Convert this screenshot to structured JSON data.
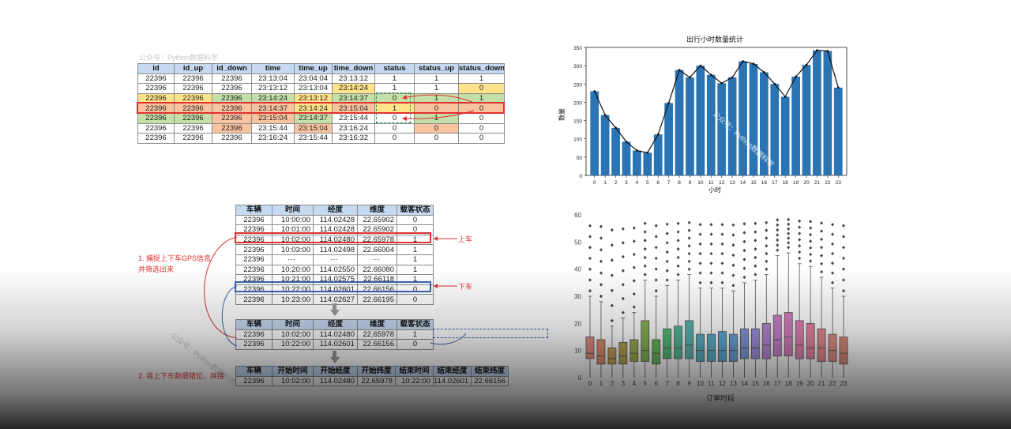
{
  "watermarks": {
    "w1": "公众号：Python数据科学",
    "w2": "公众号：Python数据科学",
    "w3": "公众号：Python数据科学"
  },
  "table1": {
    "headers": [
      "id",
      "id_up",
      "id_down",
      "time",
      "time_up",
      "time_down",
      "status",
      "status_up",
      "status_down"
    ],
    "rows": [
      [
        "22396",
        "22396",
        "22396",
        "23:13:04",
        "23:04:04",
        "23:13:12",
        "1",
        "1",
        "1"
      ],
      [
        "22396",
        "22396",
        "22396",
        "23:13:12",
        "23:13:04",
        "23:14:24",
        "1",
        "1",
        "0"
      ],
      [
        "22396",
        "22396",
        "22396",
        "23:14:24",
        "23:13:12",
        "23:14:37",
        "0",
        "1",
        "1"
      ],
      [
        "22396",
        "22396",
        "22396",
        "23:14:37",
        "23:14:24",
        "23:15:04",
        "1",
        "0",
        "0"
      ],
      [
        "22396",
        "22396",
        "22396",
        "23:15:04",
        "23:14:37",
        "23:15:44",
        "0",
        "1",
        "0"
      ],
      [
        "22396",
        "22396",
        "22396",
        "23:15:44",
        "23:15:04",
        "23:16:24",
        "0",
        "0",
        "0"
      ],
      [
        "22396",
        "22396",
        "22396",
        "23:16:24",
        "23:15:44",
        "23:16:32",
        "0",
        "0",
        "0"
      ]
    ]
  },
  "table2": {
    "headers": [
      "车辆",
      "时间",
      "经度",
      "维度",
      "载客状态"
    ],
    "rows": [
      [
        "22396",
        "10:00:00",
        "114.02428",
        "22.65902",
        "0"
      ],
      [
        "22396",
        "10:01:00",
        "114.02428",
        "22.65902",
        "0"
      ],
      [
        "22396",
        "10:02:00",
        "114.02480",
        "22.65978",
        "1"
      ],
      [
        "22396",
        "10:03:00",
        "114.02498",
        "22.66004",
        "1"
      ],
      [
        "22396",
        "···",
        "···",
        "···",
        "1"
      ],
      [
        "22396",
        "10:20:00",
        "114.02550",
        "22.66080",
        "1"
      ],
      [
        "22396",
        "10:21:00",
        "114.02575",
        "22.66118",
        "1"
      ],
      [
        "22396",
        "10:22:00",
        "114.02601",
        "22.66156",
        "0"
      ],
      [
        "22396",
        "10:23:00",
        "114.02627",
        "22.66195",
        "0"
      ]
    ]
  },
  "table3": {
    "headers": [
      "车辆",
      "时间",
      "经度",
      "维度",
      "载客状态"
    ],
    "rows": [
      [
        "22396",
        "10:02:00",
        "114.02480",
        "22.65978",
        "1"
      ],
      [
        "22396",
        "10:22:00",
        "114.02601",
        "22.66156",
        "0"
      ]
    ]
  },
  "table4": {
    "headers": [
      "车辆",
      "开始时间",
      "开始经度",
      "开始纬度",
      "结束时间",
      "结束经度",
      "结束纬度"
    ],
    "rows": [
      [
        "22396",
        "10:02:00",
        "114.02480",
        "22.65978",
        "10:22:00",
        "114.02601",
        "22.66156"
      ]
    ]
  },
  "labels": {
    "shangche": "上车",
    "xiache": "下车",
    "step1_line1": "1. 捕捉上下车GPS信息",
    "step1_line2": "并筛选出来",
    "step2": "2. 将上下车数据错位、拼接"
  },
  "chart_data": [
    {
      "type": "bar",
      "title": "出行小时数量统计",
      "xlabel": "小时",
      "ylabel": "数量",
      "categories": [
        "0",
        "1",
        "2",
        "3",
        "4",
        "5",
        "6",
        "7",
        "8",
        "9",
        "10",
        "11",
        "12",
        "13",
        "14",
        "15",
        "16",
        "17",
        "18",
        "19",
        "20",
        "21",
        "22",
        "23"
      ],
      "values": [
        230,
        165,
        130,
        92,
        68,
        62,
        112,
        198,
        288,
        268,
        300,
        275,
        252,
        268,
        312,
        305,
        282,
        250,
        215,
        270,
        302,
        342,
        340,
        240
      ],
      "line_overlay": true,
      "ylim": [
        0,
        350
      ],
      "yticks": [
        0,
        50,
        100,
        150,
        200,
        250,
        300,
        350
      ],
      "bar_color": "#2a74b4",
      "watermark": "公众号：Python数据科学"
    },
    {
      "type": "box",
      "xlabel": "订单时段",
      "ylabel": "",
      "categories": [
        "0",
        "1",
        "2",
        "3",
        "4",
        "5",
        "6",
        "7",
        "8",
        "9",
        "10",
        "11",
        "12",
        "13",
        "14",
        "15",
        "16",
        "17",
        "18",
        "19",
        "20",
        "21",
        "22",
        "23"
      ],
      "ylim": [
        0,
        60
      ],
      "yticks": [
        0,
        10,
        20,
        30,
        40,
        50,
        60
      ],
      "boxes": [
        {
          "q1": 7,
          "med": 9,
          "q3": 15,
          "lo": 0,
          "hi": 30
        },
        {
          "q1": 5,
          "med": 8,
          "q3": 14,
          "lo": 0,
          "hi": 28
        },
        {
          "q1": 5,
          "med": 7,
          "q3": 11,
          "lo": 0,
          "hi": 19
        },
        {
          "q1": 5,
          "med": 8,
          "q3": 13,
          "lo": 0,
          "hi": 22
        },
        {
          "q1": 6,
          "med": 9,
          "q3": 14,
          "lo": 0,
          "hi": 24
        },
        {
          "q1": 6,
          "med": 10,
          "q3": 21,
          "lo": 0,
          "hi": 36
        },
        {
          "q1": 5,
          "med": 9,
          "q3": 14,
          "lo": 0,
          "hi": 30
        },
        {
          "q1": 7,
          "med": 11,
          "q3": 18,
          "lo": 0,
          "hi": 34
        },
        {
          "q1": 7,
          "med": 11,
          "q3": 19,
          "lo": 0,
          "hi": 36
        },
        {
          "q1": 7,
          "med": 12,
          "q3": 21,
          "lo": 0,
          "hi": 38
        },
        {
          "q1": 6,
          "med": 10,
          "q3": 16,
          "lo": 0,
          "hi": 33
        },
        {
          "q1": 6,
          "med": 10,
          "q3": 16,
          "lo": 0,
          "hi": 33
        },
        {
          "q1": 6,
          "med": 10,
          "q3": 17,
          "lo": 0,
          "hi": 33
        },
        {
          "q1": 6,
          "med": 10,
          "q3": 16,
          "lo": 0,
          "hi": 32
        },
        {
          "q1": 7,
          "med": 11,
          "q3": 18,
          "lo": 0,
          "hi": 35
        },
        {
          "q1": 7,
          "med": 11,
          "q3": 18,
          "lo": 0,
          "hi": 36
        },
        {
          "q1": 7,
          "med": 12,
          "q3": 20,
          "lo": 0,
          "hi": 38
        },
        {
          "q1": 8,
          "med": 14,
          "q3": 23,
          "lo": 0,
          "hi": 45
        },
        {
          "q1": 8,
          "med": 15,
          "q3": 24,
          "lo": 0,
          "hi": 46
        },
        {
          "q1": 7,
          "med": 12,
          "q3": 21,
          "lo": 0,
          "hi": 42
        },
        {
          "q1": 7,
          "med": 11,
          "q3": 20,
          "lo": 0,
          "hi": 41
        },
        {
          "q1": 6,
          "med": 11,
          "q3": 18,
          "lo": 0,
          "hi": 37
        },
        {
          "q1": 6,
          "med": 10,
          "q3": 16,
          "lo": 0,
          "hi": 33
        },
        {
          "q1": 5,
          "med": 9,
          "q3": 15,
          "lo": 0,
          "hi": 30
        }
      ],
      "colors": [
        "#e08b82",
        "#df8a6e",
        "#c79c55",
        "#b3a350",
        "#9fab4f",
        "#86b451",
        "#62b85c",
        "#54ba7a",
        "#55b896",
        "#57b5ad",
        "#58b2bf",
        "#5ab0cd",
        "#5eaad8",
        "#6ca2dd",
        "#8699dd",
        "#9f8fdb",
        "#b687d5",
        "#c880cc",
        "#d67fc0",
        "#df7fb0",
        "#e584a0",
        "#e48891",
        "#e08e84",
        "#dd8b7b"
      ]
    }
  ]
}
